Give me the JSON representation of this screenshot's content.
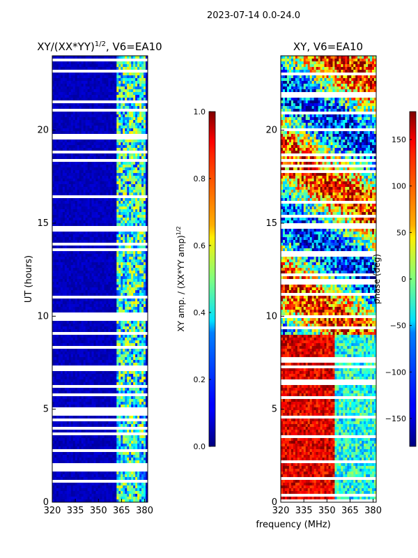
{
  "figure": {
    "suptitle": "2023-07-14 0.0-24.0",
    "shared_xlabel": "frequency (MHz)"
  },
  "chart_data": [
    {
      "type": "heatmap",
      "title_main": "XY/(XX*YY)",
      "title_sup": "1/2",
      "title_rest": ", V6=EA10",
      "xlabel": "",
      "ylabel": "UT (hours)",
      "xlim": [
        320,
        382
      ],
      "ylim": [
        0,
        24
      ],
      "xticks": [
        320,
        335,
        350,
        365,
        380
      ],
      "yticks": [
        0,
        5,
        10,
        15,
        20
      ],
      "rfi_band_mhz": [
        362,
        381
      ],
      "colorbar": {
        "label_main": "XY amp. / (XX*YY amp)",
        "label_sup": "1/2",
        "range": [
          0.0,
          1.0
        ],
        "ticks": [
          "0.0",
          "0.2",
          "0.4",
          "0.6",
          "0.8",
          "1.0"
        ],
        "colormap": "jet"
      }
    },
    {
      "type": "heatmap",
      "title_main": "XY, V6=EA10",
      "xlabel": "",
      "ylabel": "",
      "xlim": [
        320,
        382
      ],
      "ylim": [
        0,
        24
      ],
      "xticks": [
        320,
        335,
        350,
        365,
        380
      ],
      "yticks": [
        0,
        5,
        10,
        15,
        20
      ],
      "colorbar": {
        "label_main": "phase (deg)",
        "range": [
          -180,
          180
        ],
        "ticks": [
          "150",
          "100",
          "50",
          "0",
          "−50",
          "−100",
          "−150"
        ],
        "colormap": "jet"
      }
    }
  ]
}
